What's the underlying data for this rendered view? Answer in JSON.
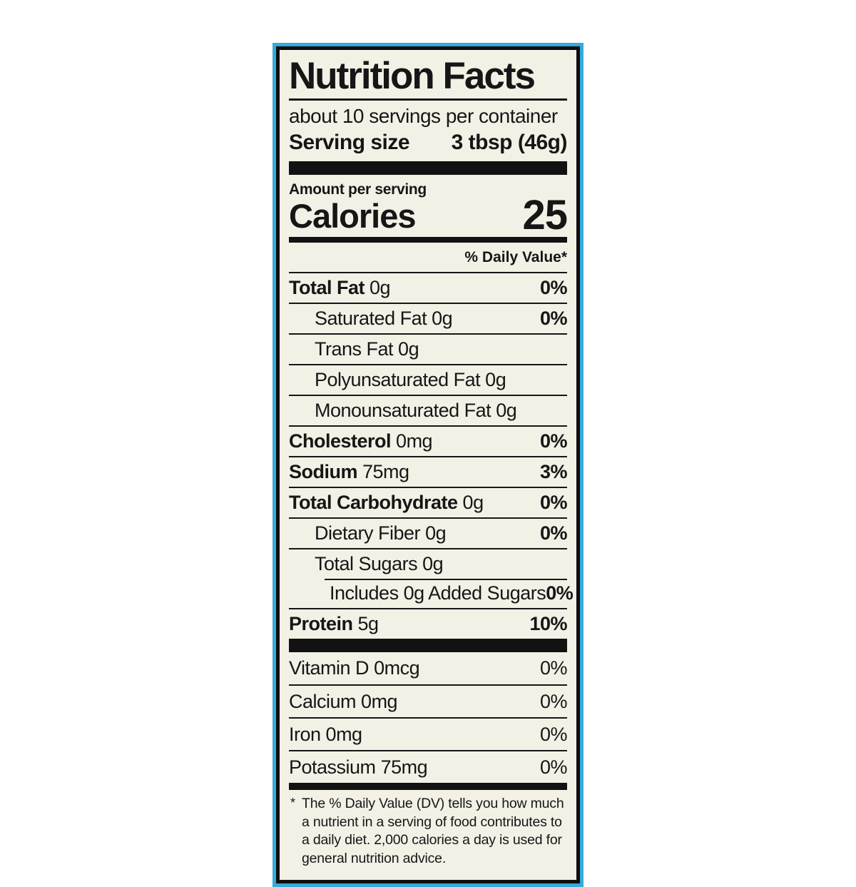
{
  "colors": {
    "accent_border": "#35aadb",
    "inner_border": "#0e0e0e",
    "paper": "#f3f0e6",
    "text": "#161616"
  },
  "label": {
    "title": "Nutrition Facts",
    "servings_per_container": "about 10 servings per container",
    "serving_size_label": "Serving size",
    "serving_size_value": "3 tbsp (46g)",
    "amount_per_serving": "Amount per serving",
    "calories_label": "Calories",
    "calories_value": "25",
    "daily_value_header": "% Daily Value*",
    "nutrients": [
      {
        "name": "Total Fat",
        "amount": "0g",
        "dv": "0%",
        "bold": true,
        "indent": 0
      },
      {
        "name": "Saturated Fat",
        "amount": "0g",
        "dv": "0%",
        "bold": false,
        "indent": 1
      },
      {
        "name": "Trans Fat",
        "amount": "0g",
        "dv": "",
        "bold": false,
        "indent": 1
      },
      {
        "name": "Polyunsaturated Fat",
        "amount": "0g",
        "dv": "",
        "bold": false,
        "indent": 1
      },
      {
        "name": "Monounsaturated Fat",
        "amount": "0g",
        "dv": "",
        "bold": false,
        "indent": 1
      },
      {
        "name": "Cholesterol",
        "amount": "0mg",
        "dv": "0%",
        "bold": true,
        "indent": 0
      },
      {
        "name": "Sodium",
        "amount": "75mg",
        "dv": "3%",
        "bold": true,
        "indent": 0
      },
      {
        "name": "Total Carbohydrate",
        "amount": "0g",
        "dv": "0%",
        "bold": true,
        "indent": 0
      },
      {
        "name": "Dietary Fiber",
        "amount": "0g",
        "dv": "0%",
        "bold": false,
        "indent": 1
      },
      {
        "name": "Total Sugars",
        "amount": "0g",
        "dv": "",
        "bold": false,
        "indent": 1
      },
      {
        "name": "Includes 0g Added Sugars",
        "amount": "",
        "dv": "0%",
        "bold": false,
        "indent": 2,
        "partial_rule": true
      },
      {
        "name": "Protein",
        "amount": "5g",
        "dv": "10%",
        "bold": true,
        "indent": 0
      }
    ],
    "micronutrients": [
      {
        "name": "Vitamin D",
        "amount": "0mcg",
        "dv": "0%"
      },
      {
        "name": "Calcium",
        "amount": "0mg",
        "dv": "0%"
      },
      {
        "name": "Iron",
        "amount": "0mg",
        "dv": "0%"
      },
      {
        "name": "Potassium",
        "amount": "75mg",
        "dv": "0%"
      }
    ],
    "footnote_marker": "*",
    "footnote": "The % Daily Value (DV) tells you how much a nutrient in a serving of food contributes to a daily diet. 2,000 calories a day is used for general nutrition advice."
  }
}
